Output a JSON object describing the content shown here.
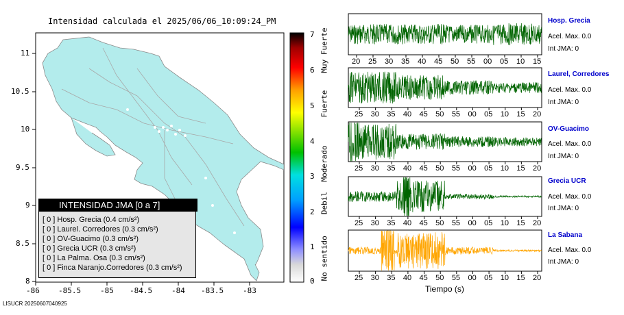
{
  "title": "Intensidad calculada el 2025/06/06_10:09:24_PM",
  "footer": "LISUCR 20250607040925",
  "chart_data": [
    {
      "type": "map",
      "title": "Intensidad calculada el 2025/06/06_10:09:24_PM",
      "x_ticks": [
        "-86",
        "-85.5",
        "-85",
        "-84.5",
        "-84",
        "-83.5",
        "-83"
      ],
      "y_ticks": [
        "11",
        "10.5",
        "10",
        "9.5",
        "9",
        "8.5",
        "8"
      ],
      "xlim": [
        -86,
        -82.5
      ],
      "ylim": [
        8,
        11.3
      ],
      "colorbar": {
        "ticks": [
          "0",
          "1",
          "2",
          "3",
          "4",
          "5",
          "6",
          "7"
        ],
        "labels": [
          "No sentido",
          "Debil",
          "Moderado",
          "Fuerte",
          "Muy Fuerte"
        ]
      },
      "legend": {
        "header": "INTENSIDAD JMA [0 a 7]",
        "rows": [
          "[ 0 ]  Hosp. Grecia (0.4 cm/s²)",
          "[ 0 ]  Laurel. Corredores (0.3 cm/s²)",
          "[ 0 ]  OV-Guacimo (0.3 cm/s²)",
          "[ 0 ]  Grecia UCR (0.3 cm/s²)",
          "[ 0 ]  La Palma. Osa (0.3 cm/s²)",
          "[ 0 ]  Finca Naranjo.Corredores (0.3 cm/s²)"
        ]
      }
    },
    {
      "type": "line",
      "xlabel": "Tiempo (s)",
      "series": [
        {
          "name": "Hosp. Grecia",
          "acel": "Acel. Max. 0.0",
          "int": "Int JMA: 0",
          "color": "#006400",
          "ticks": [
            "20",
            "25",
            "30",
            "35",
            "40",
            "45",
            "50",
            "55",
            "00",
            "05",
            "10",
            "15"
          ]
        },
        {
          "name": "Laurel, Corredores",
          "acel": "Acel. Max. 0.0",
          "int": "Int JMA: 0",
          "color": "#006400",
          "ticks": [
            "25",
            "30",
            "35",
            "40",
            "45",
            "50",
            "55",
            "00",
            "05",
            "10",
            "15",
            "20"
          ]
        },
        {
          "name": "OV-Guacimo",
          "acel": "Acel. Max. 0.0",
          "int": "Int JMA: 0",
          "color": "#006400",
          "ticks": [
            "25",
            "30",
            "35",
            "40",
            "45",
            "50",
            "55",
            "00",
            "05",
            "10",
            "15",
            "20"
          ]
        },
        {
          "name": "Grecia UCR",
          "acel": "Acel. Max. 0.0",
          "int": "Int JMA: 0",
          "color": "#006400",
          "ticks": [
            "25",
            "30",
            "35",
            "40",
            "45",
            "50",
            "55",
            "00",
            "05",
            "10",
            "15",
            "20"
          ]
        },
        {
          "name": "La Sabana",
          "acel": "Acel. Max. 0.0",
          "int": "Int JMA: 0",
          "color": "#ffa500",
          "ticks": [
            "25",
            "30",
            "35",
            "40",
            "45",
            "50",
            "55",
            "00",
            "05",
            "10",
            "15",
            "20"
          ]
        }
      ]
    }
  ]
}
